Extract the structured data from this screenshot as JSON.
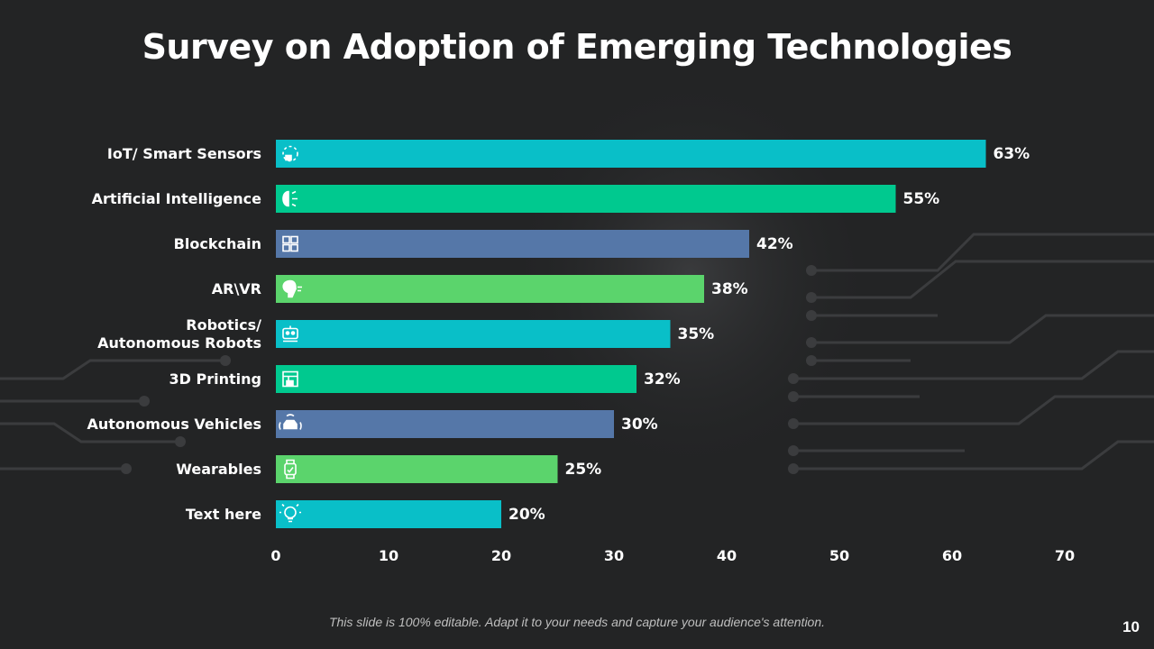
{
  "slide": {
    "title": "Survey on Adoption of Emerging Technologies",
    "footer_note": "This slide is 100% editable. Adapt it to your needs and capture your audience's attention.",
    "page_number": "10"
  },
  "chart_data": {
    "type": "bar",
    "orientation": "horizontal",
    "title": "Survey on Adoption of Emerging Technologies",
    "xlabel": "",
    "ylabel": "",
    "xlim": [
      0,
      70
    ],
    "xticks": [
      0,
      10,
      20,
      30,
      40,
      50,
      60,
      70
    ],
    "grid": false,
    "legend": "none",
    "categories": [
      "IoT/ Smart Sensors",
      "Artificial Intelligence",
      "Blockchain",
      "AR\\VR",
      "Robotics/\nAutonomous Robots",
      "3D Printing",
      "Autonomous Vehicles",
      "Wearables",
      "Text here"
    ],
    "values": [
      63,
      55,
      42,
      38,
      35,
      32,
      30,
      25,
      20
    ],
    "data_labels": [
      "63%",
      "55%",
      "42%",
      "38%",
      "35%",
      "32%",
      "30%",
      "25%",
      "20%"
    ],
    "colors": [
      "#09BFC8",
      "#00C98F",
      "#5577A8",
      "#5BD46C",
      "#09BFC8",
      "#00C98F",
      "#5577A8",
      "#5BD46C",
      "#09BFC8"
    ],
    "icons": [
      "sensor-icon",
      "brain-icon",
      "blockchain-icon",
      "vr-head-icon",
      "robot-icon",
      "3d-printer-icon",
      "car-icon",
      "smartwatch-icon",
      "lightbulb-icon"
    ]
  }
}
